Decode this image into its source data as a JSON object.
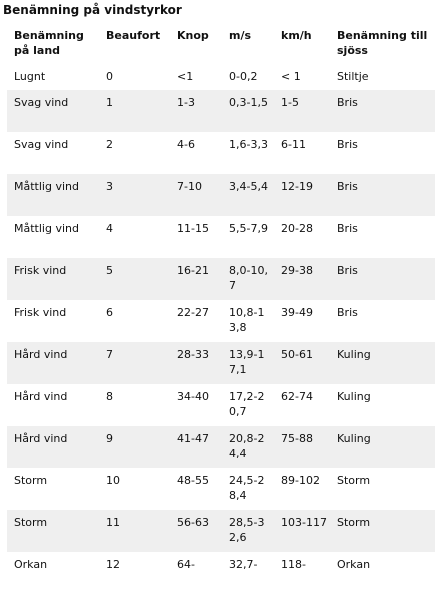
{
  "title": "Benämning på vindstyrkor",
  "headers": [
    "Benämning på land",
    "Beaufort",
    "Knop",
    "m/s",
    "km/h",
    "Benämning till sjöss"
  ],
  "rows": [
    [
      "Lugnt",
      "0",
      "<1",
      "0-0,2",
      "< 1",
      "Stiltje"
    ],
    [
      "Svag vind",
      "1",
      "1-3",
      "0,3-1,5",
      "1-5",
      "Bris"
    ],
    [
      "Svag vind",
      "2",
      "4-6",
      "1,6-3,3",
      "6-11",
      "Bris"
    ],
    [
      "Måttlig vind",
      "3",
      "7-10",
      "3,4-5,4",
      "12-19",
      "Bris"
    ],
    [
      "Måttlig vind",
      "4",
      "11-15",
      "5,5-7,9",
      "20-28",
      "Bris"
    ],
    [
      "Frisk vind",
      "5",
      "16-21",
      "8,0-10,7",
      "29-38",
      "Bris"
    ],
    [
      "Frisk vind",
      "6",
      "22-27",
      "10,8-13,8",
      "39-49",
      "Bris"
    ],
    [
      "Hård vind",
      "7",
      "28-33",
      "13,9-17,1",
      "50-61",
      "Kuling"
    ],
    [
      "Hård vind",
      "8",
      "34-40",
      "17,2-20,7",
      "62-74",
      "Kuling"
    ],
    [
      "Hård vind",
      "9",
      "41-47",
      "20,8-24,4",
      "75-88",
      "Kuling"
    ],
    [
      "Storm",
      "10",
      "48-55",
      "24,5-28,4",
      "89-102",
      "Storm"
    ],
    [
      "Storm",
      "11",
      "56-63",
      "28,5-32,6",
      "103-117",
      "Storm"
    ],
    [
      "Orkan",
      "12",
      "64-",
      "32,7-",
      "118-",
      "Orkan"
    ]
  ],
  "colors": {
    "stripe": "#efefef",
    "text": "#111111"
  }
}
